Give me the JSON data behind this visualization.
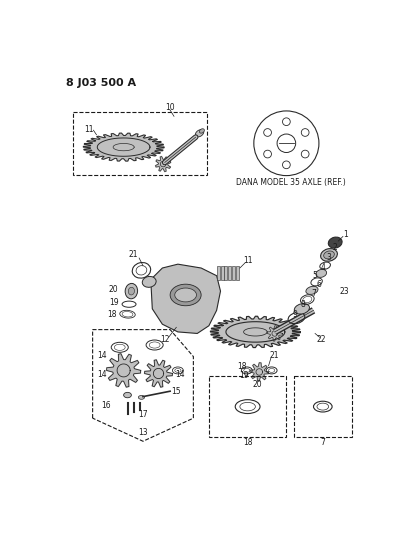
{
  "title": "8 J03 500 A",
  "bg_color": "#ffffff",
  "lc": "#1a1a1a",
  "dana_label": "DANA MODEL 35 AXLE (REF.)",
  "fig_w": 4.0,
  "fig_h": 5.33,
  "dpi": 100
}
